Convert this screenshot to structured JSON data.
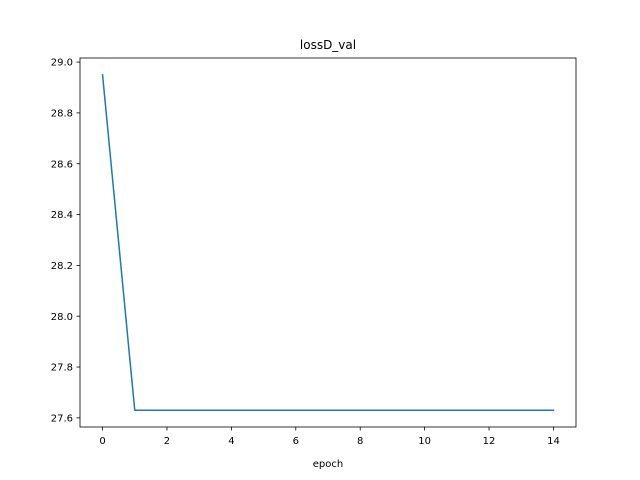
{
  "chart_data": {
    "type": "line",
    "title": "lossD_val",
    "xlabel": "epoch",
    "ylabel": "",
    "x": [
      0,
      1,
      2,
      3,
      4,
      5,
      6,
      7,
      8,
      9,
      10,
      11,
      12,
      13,
      14
    ],
    "series": [
      {
        "values": [
          28.95,
          27.63,
          27.63,
          27.63,
          27.63,
          27.63,
          27.63,
          27.63,
          27.63,
          27.63,
          27.63,
          27.63,
          27.63,
          27.63,
          27.63
        ],
        "color": "#1f77b4"
      }
    ],
    "xlim": [
      -0.7,
      14.7
    ],
    "ylim": [
      27.564,
      29.016
    ],
    "xticks": [
      0,
      2,
      4,
      6,
      8,
      10,
      12,
      14
    ],
    "yticks": [
      27.6,
      27.8,
      28.0,
      28.2,
      28.4,
      28.6,
      28.8,
      29.0
    ],
    "xtick_labels": [
      "0",
      "2",
      "4",
      "6",
      "8",
      "10",
      "12",
      "14"
    ],
    "ytick_labels": [
      "27.6",
      "27.8",
      "28.0",
      "28.2",
      "28.4",
      "28.6",
      "28.8",
      "29.0"
    ],
    "grid": false,
    "legend": false
  }
}
